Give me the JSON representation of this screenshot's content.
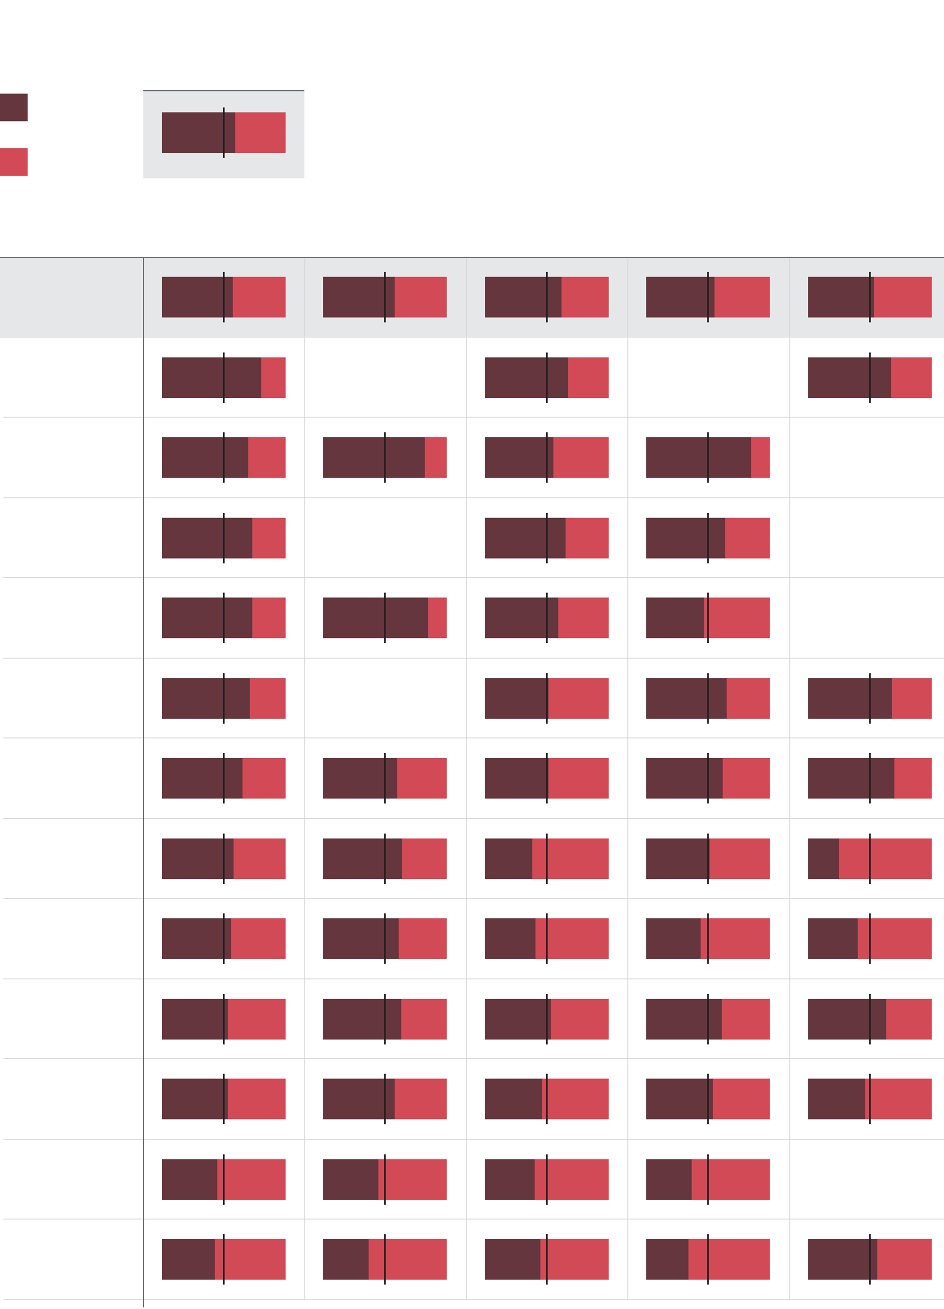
{
  "colors": {
    "share_a": "#66363e",
    "share_b": "#d14a55",
    "reference_line": "#231f20",
    "total_row_bg": "#e6e7e8"
  },
  "legend": {
    "items": [
      {
        "color": "#66363e"
      },
      {
        "color": "#d14a55"
      }
    ],
    "key": {
      "value": 0.59,
      "reference": 0.5
    }
  },
  "chart_data": {
    "type": "bar",
    "orientation": "horizontal-stacked-100",
    "reference_line": 0.5,
    "columns": 5,
    "rows": [
      {
        "total": true,
        "values": [
          0.57,
          0.58,
          0.62,
          0.55,
          0.53
        ]
      },
      {
        "values": [
          0.8,
          null,
          0.67,
          null,
          0.67
        ]
      },
      {
        "values": [
          0.7,
          0.82,
          0.55,
          0.85,
          null
        ]
      },
      {
        "values": [
          0.73,
          null,
          0.65,
          0.64,
          null
        ]
      },
      {
        "values": [
          0.73,
          0.85,
          0.59,
          0.47,
          null
        ]
      },
      {
        "values": [
          0.71,
          null,
          0.51,
          0.65,
          0.68
        ]
      },
      {
        "values": [
          0.65,
          0.6,
          0.51,
          0.62,
          0.7
        ]
      },
      {
        "values": [
          0.58,
          0.64,
          0.38,
          0.51,
          0.25
        ]
      },
      {
        "values": [
          0.56,
          0.61,
          0.41,
          0.44,
          0.4
        ]
      },
      {
        "values": [
          0.53,
          0.63,
          0.53,
          0.61,
          0.63
        ]
      },
      {
        "values": [
          0.53,
          0.58,
          0.46,
          0.54,
          0.46
        ]
      },
      {
        "values": [
          0.45,
          0.45,
          0.4,
          0.37,
          null
        ]
      },
      {
        "values": [
          0.43,
          0.37,
          0.45,
          0.34,
          0.56
        ]
      }
    ]
  }
}
